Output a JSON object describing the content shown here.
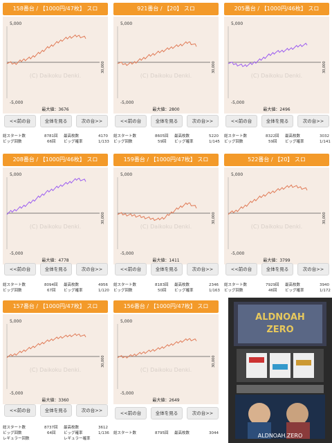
{
  "labels": {
    "prev": "<<前の台",
    "all": "全体を見る",
    "next": "次の台>>",
    "total_start": "総スタート数",
    "big_count": "ビッグ回数",
    "max_coins": "最高枚数",
    "big_rate": "ビッグ確率",
    "reg_count": "レギュラー回数",
    "reg_rate": "レギュラー確率",
    "max_value_prefix": "最大値：",
    "y_top": "5,000",
    "y_bottom": "-5,000",
    "x_right": "30,000",
    "watermark": "(C) Daikoku Denki."
  },
  "panels": [
    {
      "title": "158番台 / 【1000円/47枚】 スロ",
      "max": "3676",
      "start": "8781回",
      "big": "66回",
      "maxc": "4170",
      "rate": "1/133",
      "line": "#e07a56"
    },
    {
      "title": "921番台 / 【20】 スロ",
      "max": "2800",
      "start": "8605回",
      "big": "59回",
      "maxc": "5220",
      "rate": "1/145",
      "line": "#e07a56"
    },
    {
      "title": "205番台 / 【1000円/46枚】 スロ",
      "max": "2496",
      "start": "8322回",
      "big": "59回",
      "maxc": "3032",
      "rate": "1/141",
      "line": "#9b5cf0"
    },
    {
      "title": "208番台 / 【1000円/46枚】 スロ",
      "max": "4778",
      "start": "8094回",
      "big": "67回",
      "maxc": "4956",
      "rate": "1/120",
      "line": "#9b5cf0"
    },
    {
      "title": "159番台 / 【1000円/47枚】 スロ",
      "max": "1411",
      "start": "8183回",
      "big": "50回",
      "maxc": "2346",
      "rate": "1/163",
      "line": "#e07a56"
    },
    {
      "title": "522番台 / 【20】 スロ",
      "max": "3799",
      "start": "7929回",
      "big": "46回",
      "maxc": "3940",
      "rate": "1/172",
      "line": "#e07a56"
    },
    {
      "title": "157番台 / 【1000円/47枚】 スロ",
      "max": "3360",
      "start": "8737回",
      "big": "64回",
      "maxc": "3612",
      "rate": "1/136",
      "reg": "",
      "line": "#e07a56"
    },
    {
      "title": "156番台 / 【1000円/47枚】 スロ",
      "max": "2649",
      "start": "8795回",
      "big": "",
      "maxc": "3044",
      "rate": "",
      "line": "#e07a56"
    }
  ],
  "machine": {
    "logo_line1": "ALDNOAH",
    "logo_line2": "ZERO",
    "footer": "ALDNOAH.ZERO"
  }
}
